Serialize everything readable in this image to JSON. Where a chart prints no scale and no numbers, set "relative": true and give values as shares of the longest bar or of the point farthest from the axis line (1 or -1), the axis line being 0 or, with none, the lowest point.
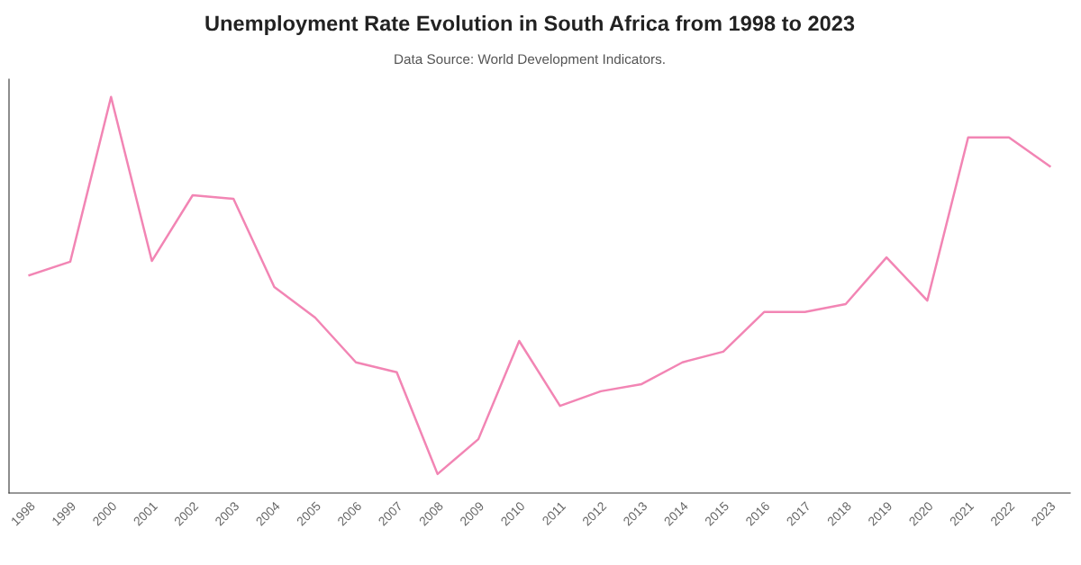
{
  "chart_data": {
    "type": "line",
    "title": "Unemployment Rate Evolution in South Africa from 1998 to 2023",
    "subtitle": "Data Source: World Development Indicators.",
    "relative": true,
    "grid": false,
    "legend": false,
    "marker": "none",
    "line_style": "solid",
    "categories": [
      "1998",
      "1999",
      "2000",
      "2001",
      "2002",
      "2003",
      "2004",
      "2005",
      "2006",
      "2007",
      "2008",
      "2009",
      "2010",
      "2011",
      "2012",
      "2013",
      "2014",
      "2015",
      "2016",
      "2017",
      "2018",
      "2019",
      "2020",
      "2021",
      "2022",
      "2023"
    ],
    "series": [
      {
        "color": "#f285b4",
        "values": [
          0.55,
          0.584,
          1,
          0.586,
          0.752,
          0.743,
          0.52,
          0.443,
          0.33,
          0.305,
          0.048,
          0.136,
          0.384,
          0.22,
          0.257,
          0.275,
          0.33,
          0.357,
          0.457,
          0.457,
          0.477,
          0.595,
          0.486,
          0.898,
          0.898,
          0.825
        ]
      }
    ]
  }
}
